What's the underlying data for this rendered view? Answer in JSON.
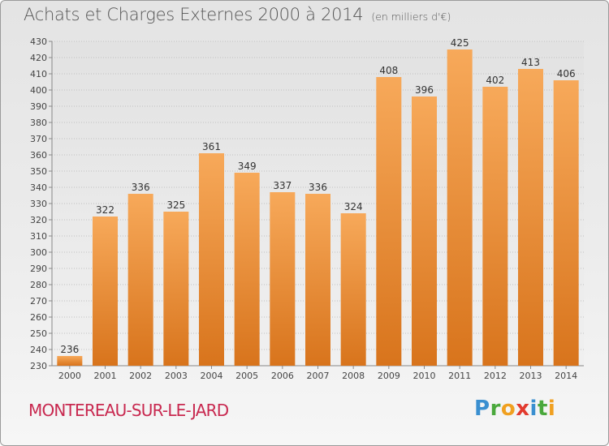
{
  "title": "Achats et Charges Externes 2000 à 2014",
  "subtitle": "(en milliers d'€)",
  "location": "MONTEREAU-SUR-LE-JARD",
  "logo": {
    "letters": [
      {
        "char": "P",
        "color": "#3a8fd0"
      },
      {
        "char": "r",
        "color": "#4aa83c"
      },
      {
        "char": "o",
        "color": "#f0a020"
      },
      {
        "char": "x",
        "color": "#e23a2e"
      },
      {
        "char": "i",
        "color": "#3a8fd0"
      },
      {
        "char": "t",
        "color": "#4aa83c"
      },
      {
        "char": "i",
        "color": "#f0a020"
      }
    ]
  },
  "colors": {
    "bar_top": "#f7a95a",
    "bar_bottom": "#d8741c",
    "grid": "#c0c0c0",
    "axis_text": "#444444"
  },
  "chart_data": {
    "type": "bar",
    "title": "Achats et Charges Externes 2000 à 2014",
    "subtitle": "(en milliers d'€)",
    "categories": [
      "2000",
      "2001",
      "2002",
      "2003",
      "2004",
      "2005",
      "2006",
      "2007",
      "2008",
      "2009",
      "2010",
      "2011",
      "2012",
      "2013",
      "2014"
    ],
    "values": [
      236,
      322,
      336,
      325,
      361,
      349,
      337,
      336,
      324,
      408,
      396,
      425,
      402,
      413,
      406
    ],
    "ylim": [
      230,
      430
    ],
    "yticks": [
      230,
      240,
      250,
      260,
      270,
      280,
      290,
      300,
      310,
      320,
      330,
      340,
      350,
      360,
      370,
      380,
      390,
      400,
      410,
      420,
      430
    ],
    "grid": true,
    "data_labels": true
  }
}
